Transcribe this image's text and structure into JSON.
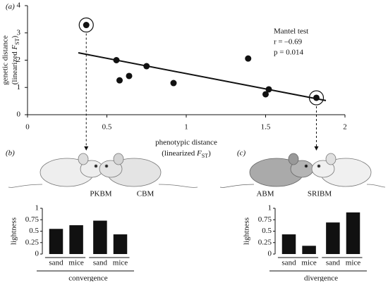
{
  "panel_labels": [
    "(a)",
    "(b)",
    "(c)"
  ],
  "mice_labels": [
    "PKBM",
    "CBM",
    "ABM",
    "SRIBM"
  ],
  "chart_data": [
    {
      "type": "scatter",
      "xlabel": [
        "phenotypic distance",
        {
          "text": "(linearized ",
          "italic": "F",
          "sub": "ST",
          "end": ")"
        }
      ],
      "ylabel": [
        "genetic distance",
        {
          "text": "(linearized ",
          "italic": "F",
          "sub": "ST",
          "end": ")"
        }
      ],
      "x": [
        0.37,
        0.56,
        0.58,
        0.64,
        0.75,
        0.92,
        1.39,
        1.5,
        1.52,
        1.82
      ],
      "y": [
        3.29,
        2.0,
        1.26,
        1.42,
        1.78,
        1.16,
        2.06,
        0.75,
        0.93,
        0.62
      ],
      "highlight": [
        0,
        9
      ],
      "fit": {
        "x": [
          0.32,
          1.88
        ],
        "y": [
          2.27,
          0.52
        ]
      },
      "annotations": [
        "Mantel test",
        "r = –0.69",
        "p = 0.014"
      ],
      "color": "#111111",
      "xlim": [
        0,
        2
      ],
      "xticks": [
        0,
        0.5,
        1,
        1.5,
        2
      ],
      "ylim": [
        0,
        4
      ],
      "yticks": [
        0,
        1,
        2,
        3,
        4
      ]
    },
    {
      "type": "bar",
      "ylabel": "lightness",
      "xlabel": "convergence",
      "categories": [
        "sand",
        "mice",
        "sand",
        "mice"
      ],
      "values": [
        0.55,
        0.63,
        0.73,
        0.43
      ],
      "color": "#111111",
      "ylim": [
        0,
        1
      ],
      "yticks": [
        0,
        0.25,
        0.5,
        0.75,
        1
      ]
    },
    {
      "type": "bar",
      "ylabel": "lightness",
      "xlabel": "divergence",
      "categories": [
        "sand",
        "mice",
        "sand",
        "mice"
      ],
      "values": [
        0.43,
        0.18,
        0.69,
        0.91
      ],
      "color": "#111111",
      "ylim": [
        0,
        1
      ],
      "yticks": [
        0,
        0.25,
        0.5,
        0.75,
        1
      ]
    }
  ]
}
